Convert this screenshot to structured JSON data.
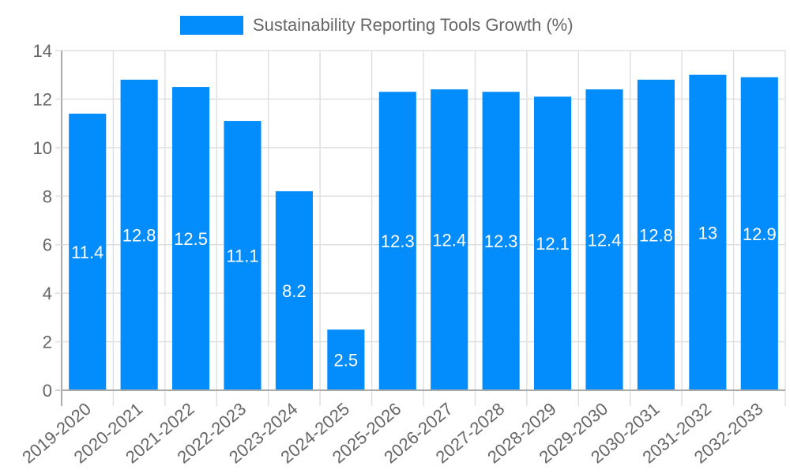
{
  "chart_data": {
    "type": "bar",
    "title": "",
    "legend": {
      "position": "top",
      "entries": [
        "Sustainability Reporting Tools Growth (%)"
      ]
    },
    "xlabel": "",
    "ylabel": "",
    "ylim": [
      0,
      14
    ],
    "yticks": [
      0,
      2,
      4,
      6,
      8,
      10,
      12,
      14
    ],
    "grid": true,
    "categories": [
      "2019-2020",
      "2020-2021",
      "2021-2022",
      "2022-2023",
      "2023-2024",
      "2024-2025",
      "2025-2026",
      "2026-2027",
      "2027-2028",
      "2028-2029",
      "2029-2030",
      "2030-2031",
      "2031-2032",
      "2032-2033"
    ],
    "series": [
      {
        "name": "Sustainability Reporting Tools Growth (%)",
        "color": "#038cfc",
        "values": [
          11.4,
          12.8,
          12.5,
          11.1,
          8.2,
          2.5,
          12.3,
          12.4,
          12.3,
          12.1,
          12.4,
          12.8,
          13,
          12.9
        ],
        "data_labels": [
          "11.4",
          "12.8",
          "12.5",
          "11.1",
          "8.2",
          "2.5",
          "12.3",
          "12.4",
          "12.3",
          "12.1",
          "12.4",
          "12.8",
          "13",
          "12.9"
        ]
      }
    ]
  },
  "legend": {
    "label": "Sustainability Reporting Tools Growth (%)"
  },
  "colors": {
    "bar": "#038cfc",
    "grid": "#e0e0e0",
    "axis": "#aaaaaa",
    "tick_text": "#666666",
    "label_text": "#ffffff"
  }
}
